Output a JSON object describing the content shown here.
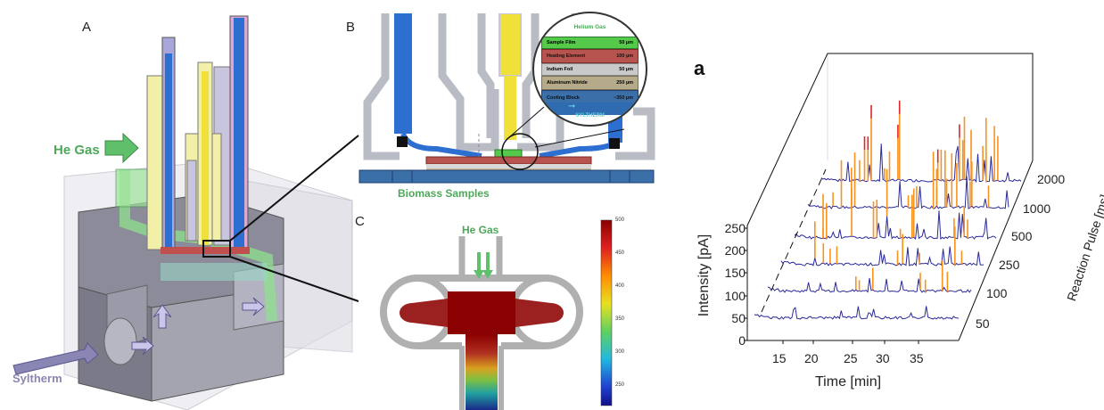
{
  "panels": {
    "A": {
      "letter": "A",
      "he_gas": "He Gas",
      "syltherm": "Syltherm"
    },
    "B": {
      "letter": "B",
      "biomass": "Biomass Samples",
      "inset": {
        "title": "Helium Gas",
        "layers": [
          {
            "label": "Sample Film",
            "thickness": "50 µm",
            "color": "#55c94a"
          },
          {
            "label": "Heating Element",
            "thickness": "100 µm",
            "color": "#b85450"
          },
          {
            "label": "Indium Foil",
            "thickness": "50 µm",
            "color": "#c9c9c9"
          },
          {
            "label": "Aluminum Nitride",
            "thickness": "250 µm",
            "color": "#b5aa8a"
          },
          {
            "label": "Cooling Block",
            "thickness": "~350 µm",
            "color": "#3b6fa8"
          }
        ],
        "flow": "SYLTHERM"
      }
    },
    "C": {
      "letter": "C",
      "he_gas": "He Gas",
      "colorbar_ticks": [
        "500",
        "450",
        "400",
        "350",
        "300",
        "250"
      ]
    },
    "a": {
      "letter": "a",
      "ylabel": "Intensity [pA]",
      "xlabel": "Time [min]",
      "zlabel": "Reaction Pulse [ms]",
      "yticks": [
        "0",
        "50",
        "100",
        "150",
        "200",
        "250"
      ],
      "xticks": [
        "15",
        "20",
        "25",
        "30",
        "35"
      ],
      "zticks": [
        "50",
        "100",
        "250",
        "500",
        "1000",
        "2000"
      ]
    }
  },
  "colors": {
    "he_gas_green": "#5fbf6a",
    "syltherm_purple": "#8a86b4",
    "blue_tube": "#2d6fd0",
    "yellow_tube": "#f0e03a",
    "trace_blue": "#2a2a9a",
    "peak_orange": "#f7931e"
  }
}
